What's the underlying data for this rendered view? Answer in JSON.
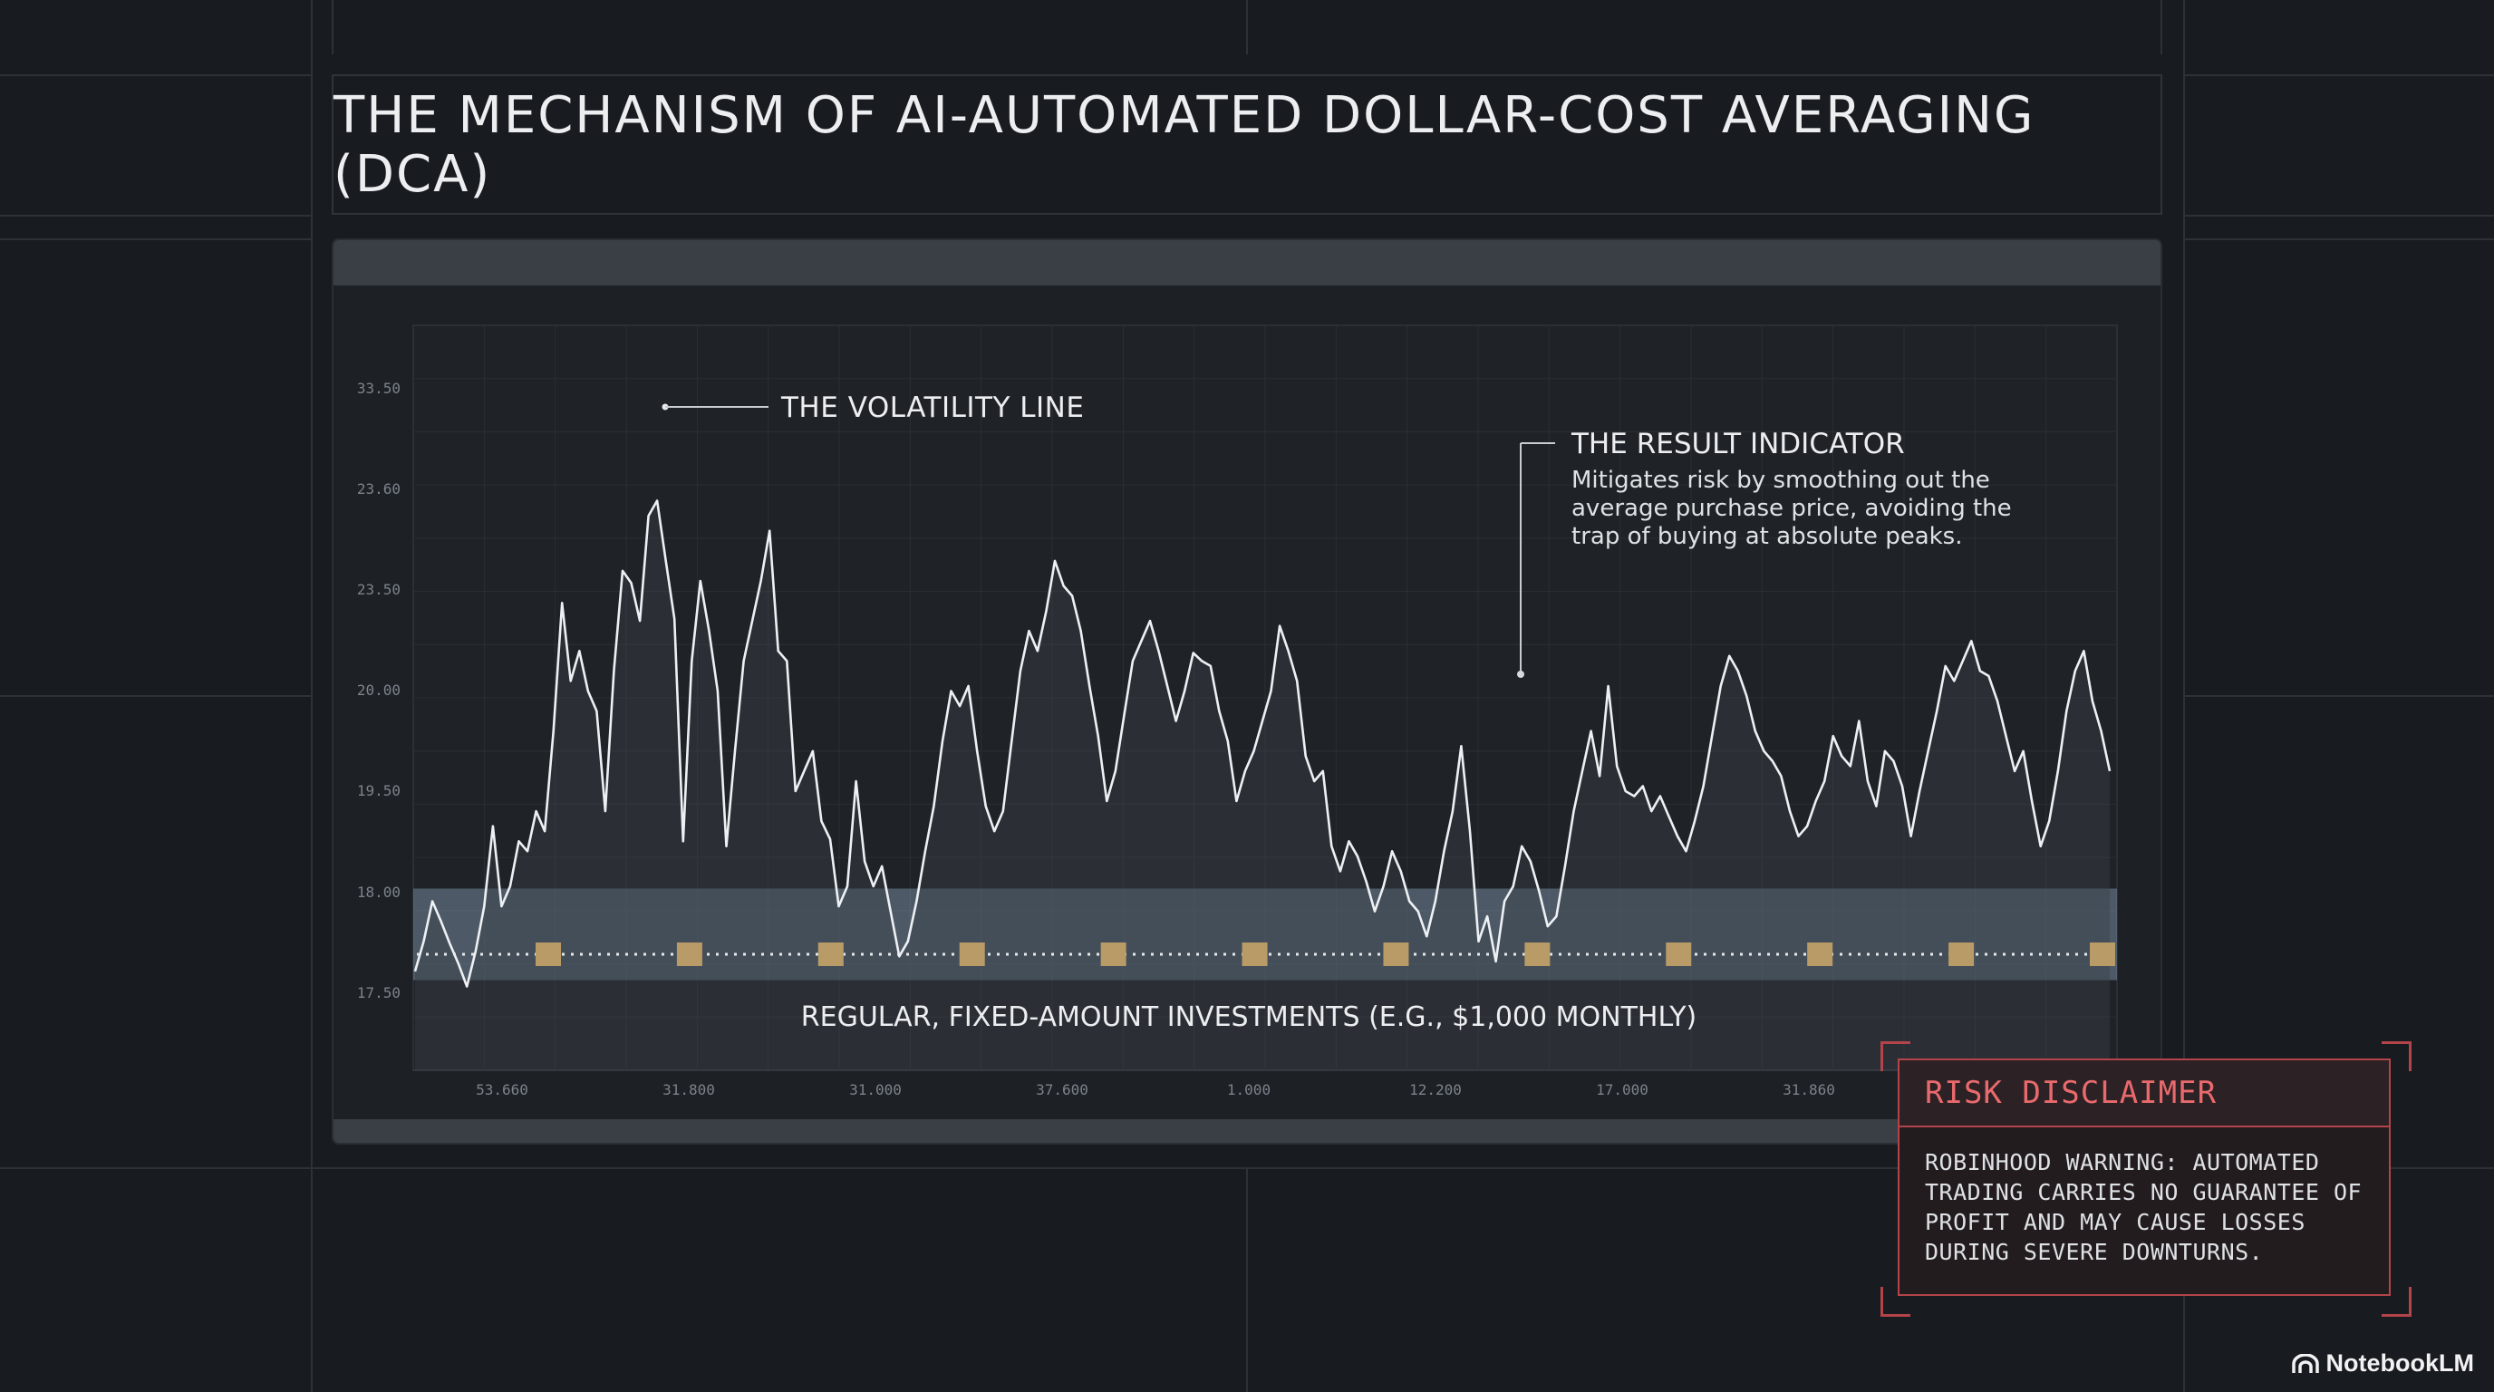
{
  "title": "THE MECHANISM OF AI-AUTOMATED DOLLAR-COST AVERAGING (DCA)",
  "chart_data": {
    "type": "line",
    "y_tick_labels": [
      "33.50",
      "23.60",
      "23.50",
      "20.00",
      "19.50",
      "18.00",
      "17.50"
    ],
    "x_tick_labels": [
      "53.660",
      "31.800",
      "31.000",
      "37.600",
      "1.000",
      "12.200",
      "17.000",
      "31.860"
    ],
    "series": [
      {
        "values": [
          0.2,
          0.5,
          0.9,
          0.7,
          0.48,
          0.28,
          0.05,
          0.4,
          0.85,
          1.65,
          0.85,
          1.05,
          1.5,
          1.4,
          1.8,
          1.6,
          2.6,
          3.88,
          3.1,
          3.4,
          3.0,
          2.8,
          1.8,
          3.2,
          4.2,
          4.08,
          3.7,
          4.75,
          4.9,
          4.3,
          3.72,
          1.5,
          3.3,
          4.1,
          3.6,
          3.0,
          1.45,
          2.4,
          3.3,
          3.7,
          4.1,
          4.6,
          3.4,
          3.3,
          2.0,
          2.2,
          2.4,
          1.7,
          1.52,
          0.85,
          1.05,
          2.1,
          1.3,
          1.05,
          1.25,
          0.8,
          0.35,
          0.5,
          0.9,
          1.4,
          1.85,
          2.5,
          3.0,
          2.85,
          3.05,
          2.4,
          1.85,
          1.6,
          1.8,
          2.5,
          3.2,
          3.6,
          3.4,
          3.8,
          4.3,
          4.05,
          3.95,
          3.6,
          3.05,
          2.55,
          1.9,
          2.2,
          2.75,
          3.3,
          3.5,
          3.7,
          3.4,
          3.05,
          2.7,
          3.0,
          3.38,
          3.3,
          3.25,
          2.8,
          2.5,
          1.9,
          2.2,
          2.4,
          2.7,
          3.0,
          3.65,
          3.4,
          3.1,
          2.35,
          2.1,
          2.2,
          1.45,
          1.2,
          1.5,
          1.35,
          1.1,
          0.8,
          1.05,
          1.4,
          1.2,
          0.9,
          0.8,
          0.55,
          0.9,
          1.4,
          1.8,
          2.45,
          1.6,
          0.5,
          0.75,
          0.3,
          0.9,
          1.05,
          1.45,
          1.3,
          1.0,
          0.65,
          0.75,
          1.25,
          1.8,
          2.2,
          2.6,
          2.15,
          3.05,
          2.25,
          2.0,
          1.95,
          2.05,
          1.8,
          1.95,
          1.75,
          1.55,
          1.4,
          1.7,
          2.05,
          2.55,
          3.05,
          3.35,
          3.2,
          2.95,
          2.6,
          2.4,
          2.3,
          2.15,
          1.8,
          1.55,
          1.65,
          1.9,
          2.1,
          2.55,
          2.35,
          2.25,
          2.7,
          2.1,
          1.85,
          2.4,
          2.3,
          2.05,
          1.55,
          2.0,
          2.4,
          2.8,
          3.25,
          3.1,
          3.3,
          3.5,
          3.2,
          3.15,
          2.9,
          2.55,
          2.2,
          2.4,
          1.9,
          1.45,
          1.7,
          2.2,
          2.8,
          3.2,
          3.4,
          2.9,
          2.6,
          2.2
        ]
      }
    ],
    "investment_markers": 12,
    "result_band": [
      0.0,
      1.0
    ],
    "annotations": {
      "volatility": "THE VOLATILITY LINE",
      "result_title": "THE RESULT INDICATOR",
      "result_body": [
        "Mitigates risk by smoothing out the",
        "average purchase price, avoiding the",
        "trap of buying at absolute peaks."
      ],
      "investments": "REGULAR, FIXED-AMOUNT INVESTMENTS (E.G., $1,000 MONTHLY)"
    },
    "grid": true
  },
  "disclaimer": {
    "title": "RISK DISCLAIMER",
    "lines": [
      "ROBINHOOD WARNING: AUTOMATED",
      "TRADING CARRIES NO GUARANTEE OF",
      "PROFIT AND MAY CAUSE LOSSES",
      "DURING SEVERE DOWNTURNS."
    ]
  },
  "brand": "NotebookLM",
  "colors": {
    "accent_red": "#e96a6d",
    "marker_gold": "#b99b68",
    "band": "#8ea8c2"
  }
}
